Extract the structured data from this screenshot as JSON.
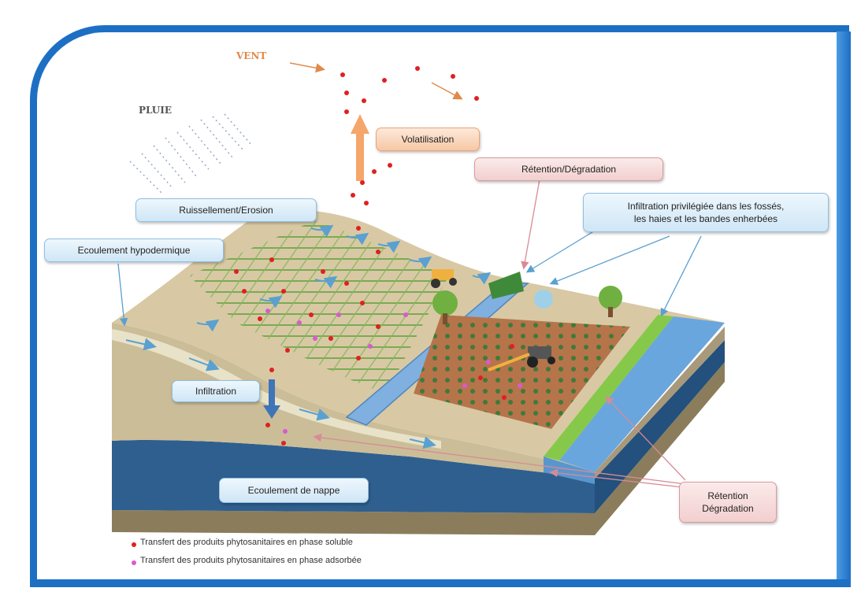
{
  "labels": {
    "vent": "VENT",
    "pluie": "PLUIE",
    "volatilisation": "Volatilisation",
    "retention_top": "Rétention/Dégradation",
    "infiltration_priv_line1": "Infiltration privilégiée dans les fossés,",
    "infiltration_priv_line2": "les haies et les bandes enherbées",
    "ruissellement": "Ruissellement/Erosion",
    "ecoulement_hypo": "Ecoulement hypodermique",
    "infiltration": "Infiltration",
    "ecoulement_nappe": "Ecoulement de nappe",
    "retention_bottom_line1": "Rétention",
    "retention_bottom_line2": "Dégradation"
  },
  "legend": [
    {
      "text": "Transfert des produits phytosanitaires en phase soluble",
      "color": "#e02020"
    },
    {
      "text": "Transfert des produits phytosanitaires en phase adsorbée",
      "color": "#d85ad0"
    }
  ],
  "colors": {
    "frame": "#1d6fc4",
    "soluble": "#e02020",
    "adsorbed": "#d85ad0",
    "aquifer": "#2f5f8f",
    "soil": "#c9b896",
    "field": "#b6744a",
    "grass": "#86c94a",
    "water": "#6aa6de"
  }
}
